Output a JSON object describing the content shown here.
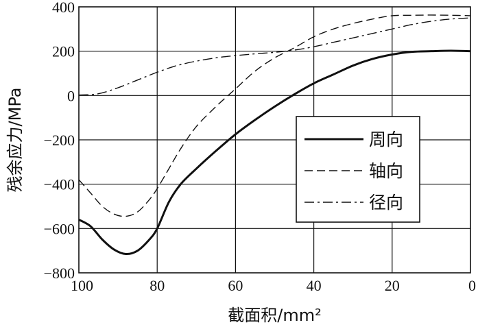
{
  "chart_data": {
    "type": "line",
    "xlabel": "截面积/mm²",
    "ylabel": "残余应力/MPa",
    "xlim": [
      100,
      0
    ],
    "ylim": [
      -800,
      400
    ],
    "x_ticks": [
      "100",
      "80",
      "60",
      "40",
      "20",
      "0"
    ],
    "y_ticks": [
      "400",
      "200",
      "0",
      "−200",
      "−400",
      "−600",
      "−800"
    ],
    "grid": true,
    "legend_position": "center-right",
    "series": [
      {
        "name": "周向",
        "style": "solid-thick",
        "x": [
          100,
          97,
          94,
          91,
          88,
          85,
          82,
          80,
          77,
          74,
          70,
          65,
          60,
          55,
          50,
          45,
          40,
          35,
          30,
          25,
          20,
          15,
          10,
          5,
          0
        ],
        "y": [
          -560,
          -590,
          -650,
          -695,
          -715,
          -700,
          -650,
          -600,
          -480,
          -400,
          -330,
          -250,
          -175,
          -110,
          -50,
          5,
          55,
          95,
          135,
          165,
          185,
          197,
          200,
          202,
          200
        ]
      },
      {
        "name": "轴向",
        "style": "dashed",
        "x": [
          100,
          97,
          94,
          91,
          88,
          85,
          82,
          80,
          77,
          74,
          70,
          65,
          60,
          55,
          50,
          45,
          40,
          35,
          30,
          25,
          20,
          15,
          10,
          5,
          0
        ],
        "y": [
          -380,
          -440,
          -500,
          -535,
          -545,
          -525,
          -470,
          -420,
          -330,
          -240,
          -140,
          -50,
          30,
          110,
          170,
          215,
          265,
          300,
          325,
          345,
          360,
          362,
          363,
          362,
          360
        ]
      },
      {
        "name": "径向",
        "style": "dash-dot",
        "x": [
          100,
          95,
          90,
          85,
          80,
          75,
          70,
          65,
          60,
          55,
          50,
          45,
          40,
          35,
          30,
          25,
          20,
          15,
          10,
          5,
          0
        ],
        "y": [
          2,
          8,
          35,
          70,
          105,
          135,
          155,
          170,
          180,
          188,
          195,
          205,
          220,
          240,
          260,
          280,
          300,
          320,
          335,
          345,
          350
        ]
      }
    ]
  }
}
